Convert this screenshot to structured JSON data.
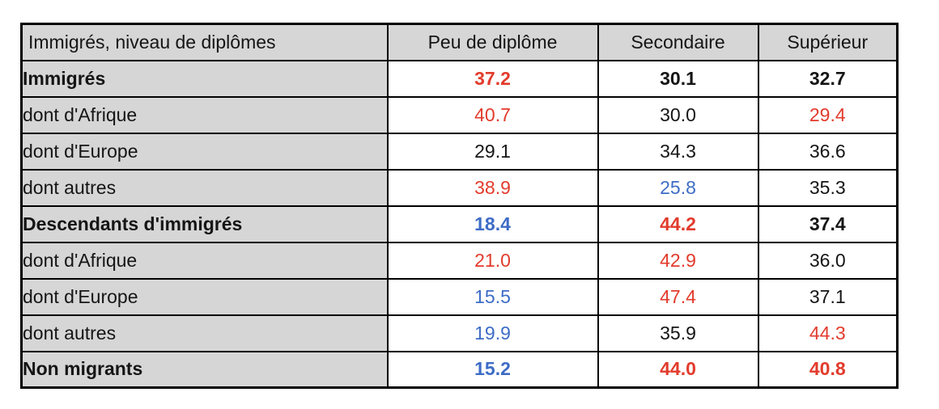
{
  "chart_data": {
    "type": "table",
    "corner_label": "Immigrés, niveau de diplômes",
    "columns": [
      "Peu de diplôme",
      "Secondaire",
      "Supérieur"
    ],
    "rows": [
      {
        "label": "Immigrés",
        "bold": true,
        "values": [
          "37.2",
          "30.1",
          "32.7"
        ],
        "colors": [
          "red",
          "black",
          "black"
        ]
      },
      {
        "label": "dont d'Afrique",
        "bold": false,
        "values": [
          "40.7",
          "30.0",
          "29.4"
        ],
        "colors": [
          "red",
          "black",
          "red"
        ]
      },
      {
        "label": "dont d'Europe",
        "bold": false,
        "values": [
          "29.1",
          "34.3",
          "36.6"
        ],
        "colors": [
          "black",
          "black",
          "black"
        ]
      },
      {
        "label": "dont autres",
        "bold": false,
        "values": [
          "38.9",
          "25.8",
          "35.3"
        ],
        "colors": [
          "red",
          "blue",
          "black"
        ]
      },
      {
        "label": "Descendants d'immigrés",
        "bold": true,
        "values": [
          "18.4",
          "44.2",
          "37.4"
        ],
        "colors": [
          "blue",
          "red",
          "black"
        ]
      },
      {
        "label": "dont d'Afrique",
        "bold": false,
        "values": [
          "21.0",
          "42.9",
          "36.0"
        ],
        "colors": [
          "red",
          "red",
          "black"
        ]
      },
      {
        "label": "dont d'Europe",
        "bold": false,
        "values": [
          "15.5",
          "47.4",
          "37.1"
        ],
        "colors": [
          "blue",
          "red",
          "black"
        ]
      },
      {
        "label": "dont autres",
        "bold": false,
        "values": [
          "19.9",
          "35.9",
          "44.3"
        ],
        "colors": [
          "blue",
          "black",
          "red"
        ]
      },
      {
        "label": "Non migrants",
        "bold": true,
        "values": [
          "15.2",
          "44.0",
          "40.8"
        ],
        "colors": [
          "blue",
          "red",
          "red"
        ]
      }
    ],
    "palette": {
      "red": "#e23b2c",
      "blue": "#3d6cc6",
      "black": "#151515",
      "header_bg": "#d6d6d6",
      "border": "#000000"
    }
  }
}
